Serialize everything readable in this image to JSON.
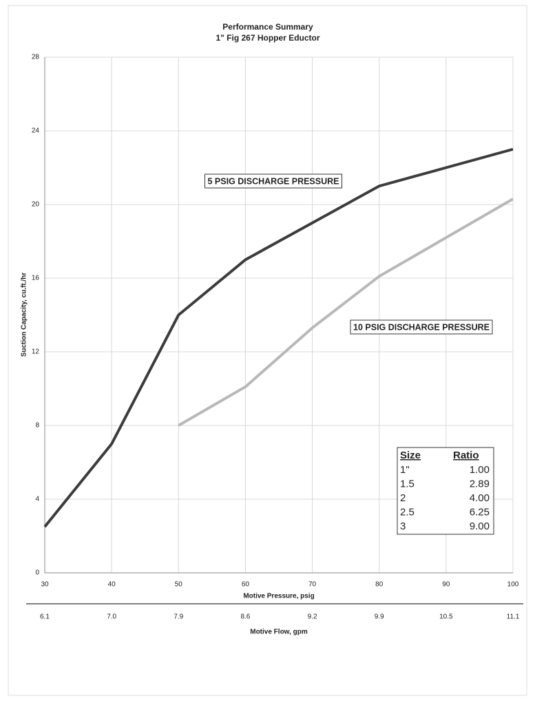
{
  "chart_data": {
    "type": "line",
    "title": [
      "Performance Summary",
      "1\" Fig 267 Hopper Eductor"
    ],
    "x_label": "Motive Pressure, psig",
    "y_label": "Suction Capacity, cu.ft./hr",
    "x2_label": "Motive Flow, gpm",
    "x": [
      30,
      40,
      50,
      60,
      70,
      80,
      90,
      100
    ],
    "series": [
      {
        "name": "5 PSIG DISCHARGE PRESSURE",
        "color": "#3c3c3c",
        "values": [
          2.5,
          7,
          14,
          17,
          19,
          21,
          22,
          23
        ]
      },
      {
        "name": "10 PSIG DISCHARGE PRESSURE",
        "color": "#b8b8b8",
        "values": [
          null,
          null,
          8,
          10.1,
          13.3,
          16.1,
          18.2,
          20.3
        ]
      }
    ],
    "xlim": [
      30,
      100
    ],
    "xticks": [
      30,
      40,
      50,
      60,
      70,
      80,
      90,
      100
    ],
    "ylim": [
      0,
      28
    ],
    "yticks": [
      0,
      4,
      8,
      12,
      16,
      20,
      24,
      28
    ],
    "x2_tick_labels": [
      "6.1",
      "7.0",
      "7.9",
      "8.6",
      "9.2",
      "9.9",
      "10.5",
      "11.1"
    ],
    "grid": true,
    "table": {
      "columns": [
        "Size",
        "Ratio"
      ],
      "rows": [
        [
          "1\"",
          "1.00"
        ],
        [
          "1.5",
          "2.89"
        ],
        [
          "2",
          "4.00"
        ],
        [
          "2.5",
          "6.25"
        ],
        [
          "3",
          "9.00"
        ]
      ]
    }
  }
}
